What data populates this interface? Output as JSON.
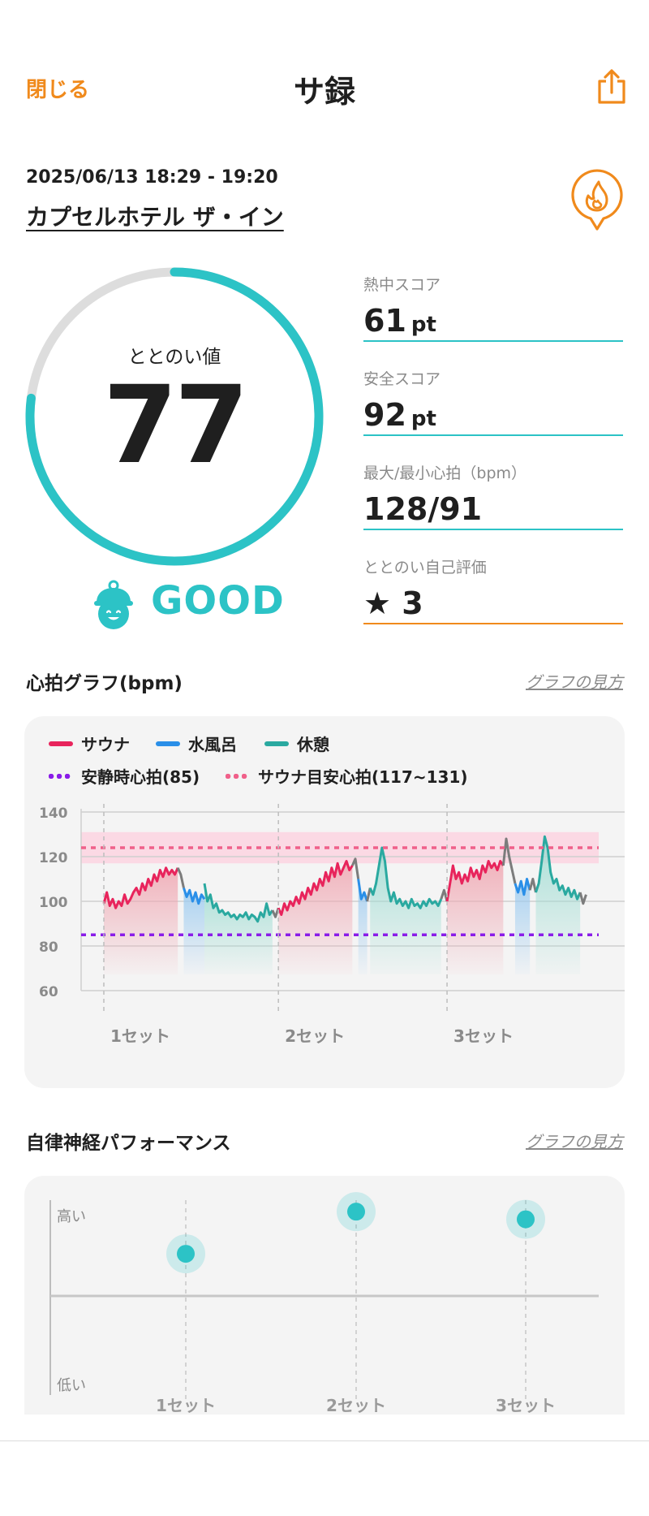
{
  "header": {
    "close_label": "閉じる",
    "title": "サ録",
    "share_icon": "share-icon"
  },
  "session": {
    "datetime": "2025/06/13 18:29 - 19:20",
    "venue": "カプセルホテル ザ・イン"
  },
  "totonoi": {
    "label": "ととのい値",
    "value": "77",
    "value_ratio": 0.77,
    "rating": "GOOD"
  },
  "stats": [
    {
      "label": "熱中スコア",
      "value": "61",
      "unit": "pt"
    },
    {
      "label": "安全スコア",
      "value": "92",
      "unit": "pt"
    },
    {
      "label": "最大/最小心拍（bpm）",
      "value": "128/91",
      "unit": ""
    },
    {
      "label": "ととのい自己評価",
      "value": "★ 3",
      "unit": ""
    }
  ],
  "heart_section": {
    "title": "心拍グラフ(bpm)",
    "link": "グラフの見方"
  },
  "autonomic_section": {
    "title": "自律神経パフォーマンス",
    "link": "グラフの見方"
  },
  "colors": {
    "accent_orange": "#f08a1c",
    "teal": "#2cc3c6",
    "sauna": "#e8245c",
    "cold_bath": "#2a8fe8",
    "rest": "#2aa9a0",
    "resting_hr": "#8a1de8",
    "sauna_target": "#f0608a"
  },
  "chart_data": [
    {
      "type": "line",
      "legend": [
        "サウナ",
        "水風呂",
        "休憩",
        "安静時心拍(85)",
        "サウナ目安心拍(117~131)"
      ],
      "yticks": [
        "140",
        "120",
        "100",
        "80",
        "60"
      ],
      "ylim": [
        60,
        140
      ],
      "set_labels": [
        "1セット",
        "2セット",
        "3セット"
      ],
      "resting_hr": 85,
      "target_band": [
        117,
        131
      ],
      "target_line": 124,
      "grid": true,
      "segments": [
        {
          "phase": "sauna",
          "x": [
            0,
            1,
            2,
            3,
            4,
            5,
            6,
            7,
            8,
            9,
            10,
            11,
            12,
            13,
            14,
            15,
            16,
            17,
            18,
            19,
            20,
            21,
            22,
            23,
            24,
            25
          ],
          "y": [
            99,
            104,
            98,
            101,
            97,
            100,
            98,
            103,
            99,
            101,
            104,
            106,
            103,
            108,
            105,
            110,
            107,
            112,
            109,
            114,
            111,
            115,
            112,
            114,
            112,
            115
          ]
        },
        {
          "phase": "transition",
          "x": [
            25,
            26,
            27
          ],
          "y": [
            115,
            112,
            106
          ]
        },
        {
          "phase": "cold",
          "x": [
            27,
            28,
            29,
            30,
            31,
            32,
            33,
            34
          ],
          "y": [
            106,
            102,
            105,
            100,
            104,
            99,
            103,
            101
          ]
        },
        {
          "phase": "rest",
          "x": [
            34,
            35,
            36,
            37,
            38,
            39,
            40,
            41,
            42,
            43,
            44,
            45,
            46,
            47,
            48,
            49,
            50,
            51,
            52,
            53,
            54,
            55,
            56,
            57
          ],
          "y": [
            108,
            100,
            103,
            97,
            99,
            95,
            96,
            94,
            95,
            93,
            94,
            92,
            94,
            93,
            95,
            92,
            94,
            93,
            91,
            95,
            93,
            99,
            94,
            96
          ]
        },
        {
          "phase": "transition",
          "x": [
            57,
            58,
            59
          ],
          "y": [
            96,
            93,
            97
          ]
        },
        {
          "phase": "sauna",
          "x": [
            59,
            60,
            61,
            62,
            63,
            64,
            65,
            66,
            67,
            68,
            69,
            70,
            71,
            72,
            73,
            74,
            75,
            76,
            77,
            78,
            79,
            80,
            81,
            82,
            83,
            84
          ],
          "y": [
            97,
            94,
            99,
            96,
            100,
            98,
            102,
            99,
            104,
            101,
            106,
            103,
            108,
            105,
            110,
            107,
            113,
            109,
            115,
            111,
            117,
            112,
            115,
            118,
            114,
            116
          ]
        },
        {
          "phase": "transition",
          "x": [
            84,
            85,
            86
          ],
          "y": [
            116,
            119,
            110
          ]
        },
        {
          "phase": "cold",
          "x": [
            86,
            87,
            88,
            89
          ],
          "y": [
            110,
            101,
            104,
            100
          ]
        },
        {
          "phase": "transition",
          "x": [
            89,
            90
          ],
          "y": [
            100,
            106
          ]
        },
        {
          "phase": "rest",
          "x": [
            90,
            91,
            92,
            93,
            94,
            95,
            96,
            97,
            98,
            99,
            100,
            101,
            102,
            103,
            104,
            105,
            106,
            107,
            108,
            109,
            110,
            111,
            112,
            113,
            114
          ],
          "y": [
            106,
            103,
            108,
            116,
            124,
            118,
            106,
            100,
            104,
            99,
            101,
            98,
            100,
            97,
            101,
            98,
            99,
            97,
            100,
            98,
            101,
            99,
            100,
            98,
            101
          ]
        },
        {
          "phase": "transition",
          "x": [
            114,
            115,
            116
          ],
          "y": [
            101,
            105,
            100
          ]
        },
        {
          "phase": "sauna",
          "x": [
            116,
            117,
            118,
            119,
            120,
            121,
            122,
            123,
            124,
            125,
            126,
            127,
            128,
            129,
            130,
            131,
            132,
            133,
            134,
            135
          ],
          "y": [
            100,
            108,
            116,
            110,
            113,
            108,
            112,
            109,
            115,
            111,
            114,
            110,
            116,
            113,
            118,
            115,
            117,
            114,
            118,
            116
          ]
        },
        {
          "phase": "transition",
          "x": [
            135,
            136,
            137,
            138,
            139
          ],
          "y": [
            116,
            128,
            120,
            114,
            108
          ]
        },
        {
          "phase": "cold",
          "x": [
            139,
            140,
            141,
            142,
            143,
            144
          ],
          "y": [
            108,
            104,
            109,
            103,
            110,
            105
          ]
        },
        {
          "phase": "transition",
          "x": [
            144,
            145,
            146
          ],
          "y": [
            105,
            110,
            104
          ]
        },
        {
          "phase": "rest",
          "x": [
            146,
            147,
            148,
            149,
            150,
            151,
            152,
            153,
            154,
            155,
            156,
            157,
            158,
            159,
            160,
            161
          ],
          "y": [
            104,
            108,
            118,
            129,
            124,
            113,
            108,
            110,
            105,
            107,
            103,
            106,
            102,
            105,
            101,
            104
          ]
        },
        {
          "phase": "transition",
          "x": [
            161,
            162,
            163
          ],
          "y": [
            104,
            99,
            103
          ]
        }
      ]
    },
    {
      "type": "scatter",
      "categories": [
        "1セット",
        "2セット",
        "3セット"
      ],
      "values": [
        0.44,
        0.88,
        0.8
      ],
      "yticks": [
        "高い",
        "低い"
      ],
      "ylim": [
        -1,
        1
      ]
    }
  ]
}
